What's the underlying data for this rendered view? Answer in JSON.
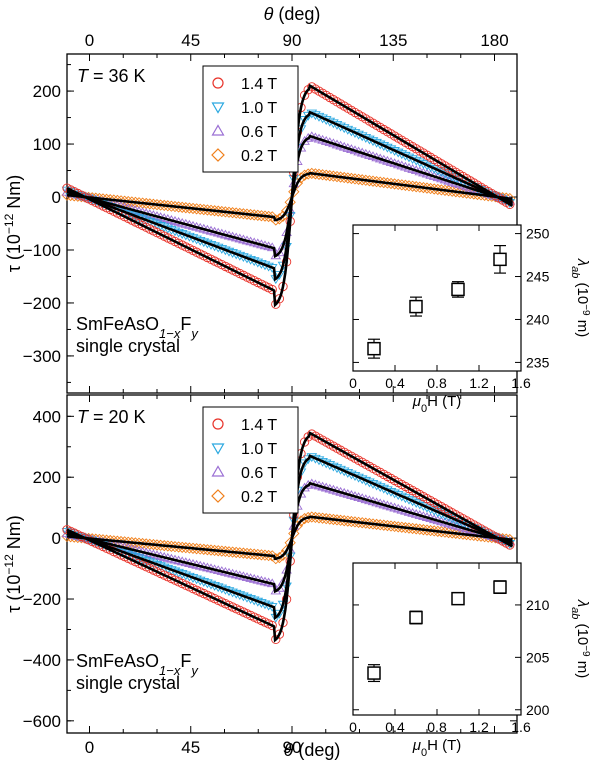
{
  "chart_data": [
    {
      "type": "scatter",
      "panel": "top",
      "top_axis": {
        "label_symbol": "θ",
        "label_unit": "(deg)",
        "ticks": [
          "0",
          "45",
          "90",
          "135",
          "180"
        ],
        "tick_values": [
          0,
          45,
          90,
          135,
          180
        ]
      },
      "xlim": [
        -10,
        190
      ],
      "ylabel_main": "τ (10",
      "ylabel_exp": "−12",
      "ylabel_unit": " Nm)",
      "ylim": [
        -370,
        270
      ],
      "yticks": [
        "200",
        "100",
        "0",
        "−100",
        "−200",
        "−300"
      ],
      "ytick_values": [
        200,
        100,
        0,
        -100,
        -200,
        -300
      ],
      "temperature": {
        "symbol": "T",
        "value": " = 36 K"
      },
      "sample": {
        "line1_a": "SmFeAsO",
        "line1_sub1": "1−x",
        "line1_b": "F",
        "line1_sub2": "y",
        "line2": "single crystal"
      },
      "legend_placement": "top-center",
      "series": [
        {
          "name": "1.4 T",
          "marker": "circle",
          "color": "#e8332a",
          "amplitude": 210
        },
        {
          "name": "1.0 T",
          "marker": "triangle-down",
          "color": "#2aa8e0",
          "amplitude": 160
        },
        {
          "name": "0.6 T",
          "marker": "triangle-up",
          "color": "#9b6fd4",
          "amplitude": 115
        },
        {
          "name": "0.2 T",
          "marker": "diamond",
          "color": "#f07f1a",
          "amplitude": 45
        }
      ],
      "fit_line": "black solid",
      "inset": {
        "type": "scatter",
        "xlabel_sym": "μ",
        "xlabel_sub": "0",
        "xlabel_rest": "H (T)",
        "xlim": [
          0,
          1.6
        ],
        "xticks": [
          "0",
          "0.4",
          "0.8",
          "1.2",
          "1.6"
        ],
        "xtick_values": [
          0,
          0.4,
          0.8,
          1.2,
          1.6
        ],
        "ylim": [
          234,
          251
        ],
        "yticks": [
          "235",
          "240",
          "245",
          "250"
        ],
        "ytick_values": [
          235,
          240,
          245,
          250
        ],
        "ylabel_sym": "λ",
        "ylabel_sub": "ab",
        "ylabel_unit_a": " (10",
        "ylabel_exp": "−9",
        "ylabel_unit_b": " m)",
        "x": [
          0.2,
          0.6,
          1.0,
          1.4
        ],
        "y": [
          236.6,
          241.5,
          243.5,
          247.0
        ],
        "yerr": [
          1.1,
          1.1,
          0.9,
          1.6
        ],
        "marker": "open-square"
      }
    },
    {
      "type": "scatter",
      "panel": "bottom",
      "bottom_axis": {
        "label_symbol": "θ",
        "label_unit": "(deg)",
        "ticks": [
          "0",
          "45",
          "90"
        ],
        "tick_values": [
          0,
          45,
          90
        ]
      },
      "xlim": [
        -10,
        190
      ],
      "ylabel_main": "τ (10",
      "ylabel_exp": "−12",
      "ylabel_unit": " Nm)",
      "ylim": [
        -640,
        470
      ],
      "yticks": [
        "400",
        "200",
        "0",
        "−200",
        "−400",
        "−600"
      ],
      "ytick_values": [
        400,
        200,
        0,
        -200,
        -400,
        -600
      ],
      "temperature": {
        "symbol": "T",
        "value": " = 20 K"
      },
      "sample": {
        "line1_a": "SmFeAsO",
        "line1_sub1": "1−x",
        "line1_b": "F",
        "line1_sub2": "y",
        "line2": "single crystal"
      },
      "legend_placement": "top-center",
      "series": [
        {
          "name": "1.4 T",
          "marker": "circle",
          "color": "#e8332a",
          "amplitude": 345
        },
        {
          "name": "1.0 T",
          "marker": "triangle-down",
          "color": "#2aa8e0",
          "amplitude": 270
        },
        {
          "name": "0.6 T",
          "marker": "triangle-up",
          "color": "#9b6fd4",
          "amplitude": 180
        },
        {
          "name": "0.2 T",
          "marker": "diamond",
          "color": "#f07f1a",
          "amplitude": 70
        }
      ],
      "fit_line": "black solid",
      "inset": {
        "type": "scatter",
        "xlabel_sym": "μ",
        "xlabel_sub": "0",
        "xlabel_rest": "H (T)",
        "xlim": [
          0,
          1.6
        ],
        "xticks": [
          "0",
          "0.4",
          "0.8",
          "1.2",
          "1.6"
        ],
        "xtick_values": [
          0,
          0.4,
          0.8,
          1.2,
          1.6
        ],
        "ylim": [
          199.5,
          214
        ],
        "yticks": [
          "200",
          "205",
          "210"
        ],
        "ytick_values": [
          200,
          205,
          210
        ],
        "ylabel_sym": "λ",
        "ylabel_sub": "ab",
        "ylabel_unit_a": " (10",
        "ylabel_exp": "−9",
        "ylabel_unit_b": " m)",
        "x": [
          0.2,
          0.6,
          1.0,
          1.4
        ],
        "y": [
          203.5,
          208.8,
          210.6,
          211.7
        ],
        "yerr": [
          0.8,
          0.6,
          0.5,
          0.6
        ],
        "marker": "open-square"
      }
    }
  ]
}
